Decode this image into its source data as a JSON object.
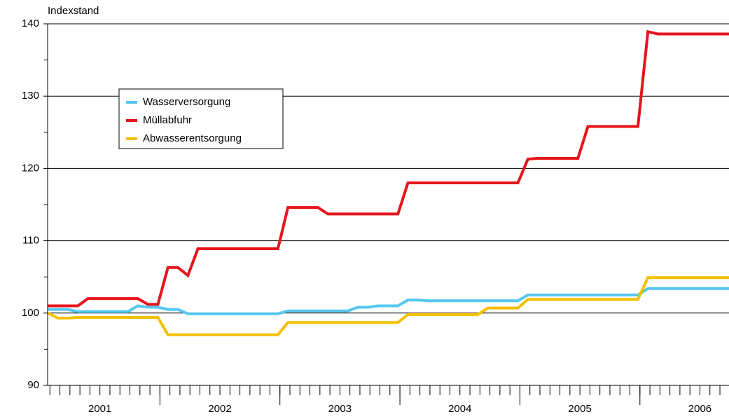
{
  "chart_data": {
    "type": "line",
    "y_label": "Indexstand",
    "categories": [
      "2001",
      "2002",
      "2003",
      "2004",
      "2005",
      "2006"
    ],
    "series": [
      {
        "name": "Wasserversorgung",
        "color": "#55c8f0",
        "values": [
          [
            100.5,
            100.5,
            100.5,
            100.2,
            100.2,
            100.2,
            100.2,
            100.2,
            100.2,
            101,
            100.8,
            100.8
          ],
          [
            100.5,
            100.5,
            99.9,
            99.9,
            99.9,
            99.9,
            99.9,
            99.9,
            99.9,
            99.9,
            99.9,
            99.9
          ],
          [
            100.3,
            100.3,
            100.3,
            100.3,
            100.3,
            100.3,
            100.3,
            100.8,
            100.8,
            101,
            101,
            101
          ],
          [
            101.8,
            101.8,
            101.7,
            101.7,
            101.7,
            101.7,
            101.7,
            101.7,
            101.7,
            101.7,
            101.7,
            101.7
          ],
          [
            102.5,
            102.5,
            102.5,
            102.5,
            102.5,
            102.5,
            102.5,
            102.5,
            102.5,
            102.5,
            102.5,
            102.5
          ],
          [
            103.4,
            103.4,
            103.4,
            103.4,
            103.4,
            103.4,
            103.4,
            103.4,
            103.4,
            103.4,
            103.4,
            103.4
          ]
        ]
      },
      {
        "name": "Müllabfuhr",
        "color": "#e8141b",
        "values": [
          [
            101,
            101,
            101,
            101,
            102,
            102,
            102,
            102,
            102,
            102,
            101.2,
            101.2
          ],
          [
            106.3,
            106.3,
            105.2,
            108.9,
            108.9,
            108.9,
            108.9,
            108.9,
            108.9,
            108.9,
            108.9,
            108.9
          ],
          [
            114.6,
            114.6,
            114.6,
            114.6,
            113.7,
            113.7,
            113.7,
            113.7,
            113.7,
            113.7,
            113.7,
            113.7
          ],
          [
            118,
            118,
            118,
            118,
            118,
            118,
            118,
            118,
            118,
            118,
            118,
            118
          ],
          [
            121.3,
            121.4,
            121.4,
            121.4,
            121.4,
            121.4,
            125.8,
            125.8,
            125.8,
            125.8,
            125.8,
            125.8
          ],
          [
            138.9,
            138.6,
            138.6,
            138.6,
            138.6,
            138.6,
            138.6,
            138.6,
            138.6,
            138.6,
            138.6,
            138.6
          ]
        ]
      },
      {
        "name": "Abwasserentsorgung",
        "color": "#f5c000",
        "values": [
          [
            100,
            99.3,
            99.3,
            99.4,
            99.4,
            99.4,
            99.4,
            99.4,
            99.4,
            99.4,
            99.4,
            99.4
          ],
          [
            97,
            97,
            97,
            97,
            97,
            97,
            97,
            97,
            97,
            97,
            97,
            97
          ],
          [
            98.7,
            98.7,
            98.7,
            98.7,
            98.7,
            98.7,
            98.7,
            98.7,
            98.7,
            98.7,
            98.7,
            98.7
          ],
          [
            99.8,
            99.8,
            99.8,
            99.8,
            99.8,
            99.8,
            99.8,
            99.8,
            100.7,
            100.7,
            100.7,
            100.7
          ],
          [
            101.9,
            101.9,
            101.9,
            101.9,
            101.9,
            101.9,
            101.9,
            101.9,
            101.9,
            101.9,
            101.9,
            101.9
          ],
          [
            104.9,
            104.9,
            104.9,
            104.9,
            104.9,
            104.9,
            104.9,
            104.9,
            104.9,
            104.9,
            104.9,
            104.9
          ]
        ]
      }
    ],
    "ylim": [
      90,
      140
    ],
    "yticks": [
      90,
      100,
      110,
      120,
      130,
      140
    ],
    "y_minor_ticks": [
      95,
      105,
      115,
      125,
      135
    ],
    "grid": true
  }
}
